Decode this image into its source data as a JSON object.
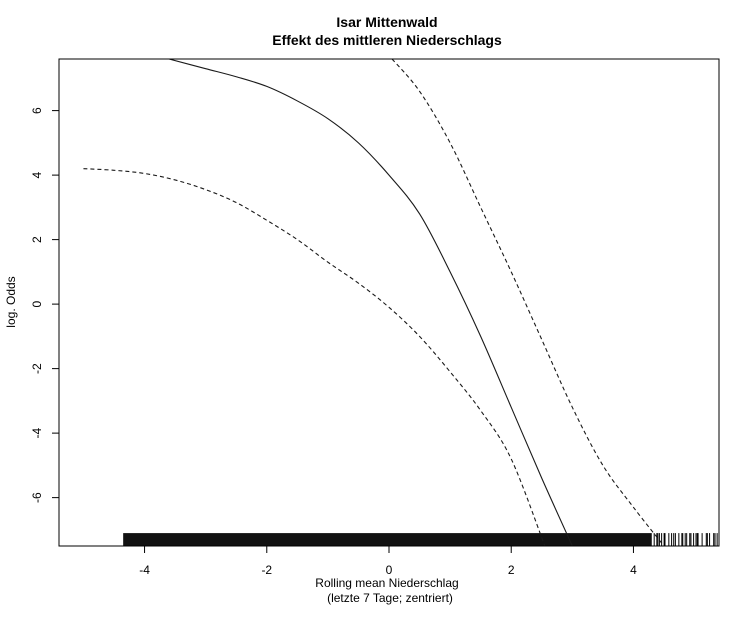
{
  "chart_data": {
    "type": "line",
    "title": "Isar Mittenwald",
    "subtitle": "Effekt des mittleren Niederschlags",
    "xlabel": "Rolling mean Niederschlag",
    "xlabel2": "(letzte 7 Tage; zentriert)",
    "ylabel": "log. Odds",
    "xlim": [
      -5.4,
      5.4
    ],
    "ylim": [
      -7.5,
      7.6
    ],
    "x_ticks": [
      -4,
      -2,
      0,
      2,
      4
    ],
    "y_ticks": [
      -6,
      -4,
      -2,
      0,
      2,
      4,
      6
    ],
    "grid": false,
    "series": [
      {
        "style": "solid",
        "points": [
          [
            -3.6,
            7.6
          ],
          [
            -3,
            7.3
          ],
          [
            -2.5,
            7.05
          ],
          [
            -2,
            6.75
          ],
          [
            -1.5,
            6.3
          ],
          [
            -1,
            5.75
          ],
          [
            -0.5,
            5.0
          ],
          [
            0,
            4.0
          ],
          [
            0.5,
            2.8
          ],
          [
            1,
            1.0
          ],
          [
            1.5,
            -1.0
          ],
          [
            2,
            -3.2
          ],
          [
            2.5,
            -5.4
          ],
          [
            3,
            -7.5
          ]
        ]
      },
      {
        "style": "dashed",
        "points": [
          [
            -5,
            4.2
          ],
          [
            -4.5,
            4.15
          ],
          [
            -4,
            4.05
          ],
          [
            -3.5,
            3.85
          ],
          [
            -3,
            3.55
          ],
          [
            -2.5,
            3.15
          ],
          [
            -2,
            2.6
          ],
          [
            -1.5,
            2.0
          ],
          [
            -1,
            1.3
          ],
          [
            -0.5,
            0.65
          ],
          [
            0,
            -0.1
          ],
          [
            0.5,
            -1.0
          ],
          [
            1,
            -2.1
          ],
          [
            1.5,
            -3.3
          ],
          [
            2,
            -4.8
          ],
          [
            2.55,
            -7.5
          ]
        ]
      },
      {
        "style": "dashed",
        "points": [
          [
            0.05,
            7.6
          ],
          [
            0.5,
            6.6
          ],
          [
            1,
            5.0
          ],
          [
            1.5,
            3.0
          ],
          [
            2,
            1.0
          ],
          [
            2.5,
            -1.1
          ],
          [
            3,
            -3.2
          ],
          [
            3.5,
            -5.0
          ],
          [
            4,
            -6.3
          ],
          [
            4.5,
            -7.5
          ]
        ]
      }
    ],
    "rug": {
      "from": -4.35,
      "to": 5.4,
      "dense_from": -4.35,
      "dense_to": 4.3,
      "y_bottom": -7.5,
      "y_top": -7.1
    }
  }
}
